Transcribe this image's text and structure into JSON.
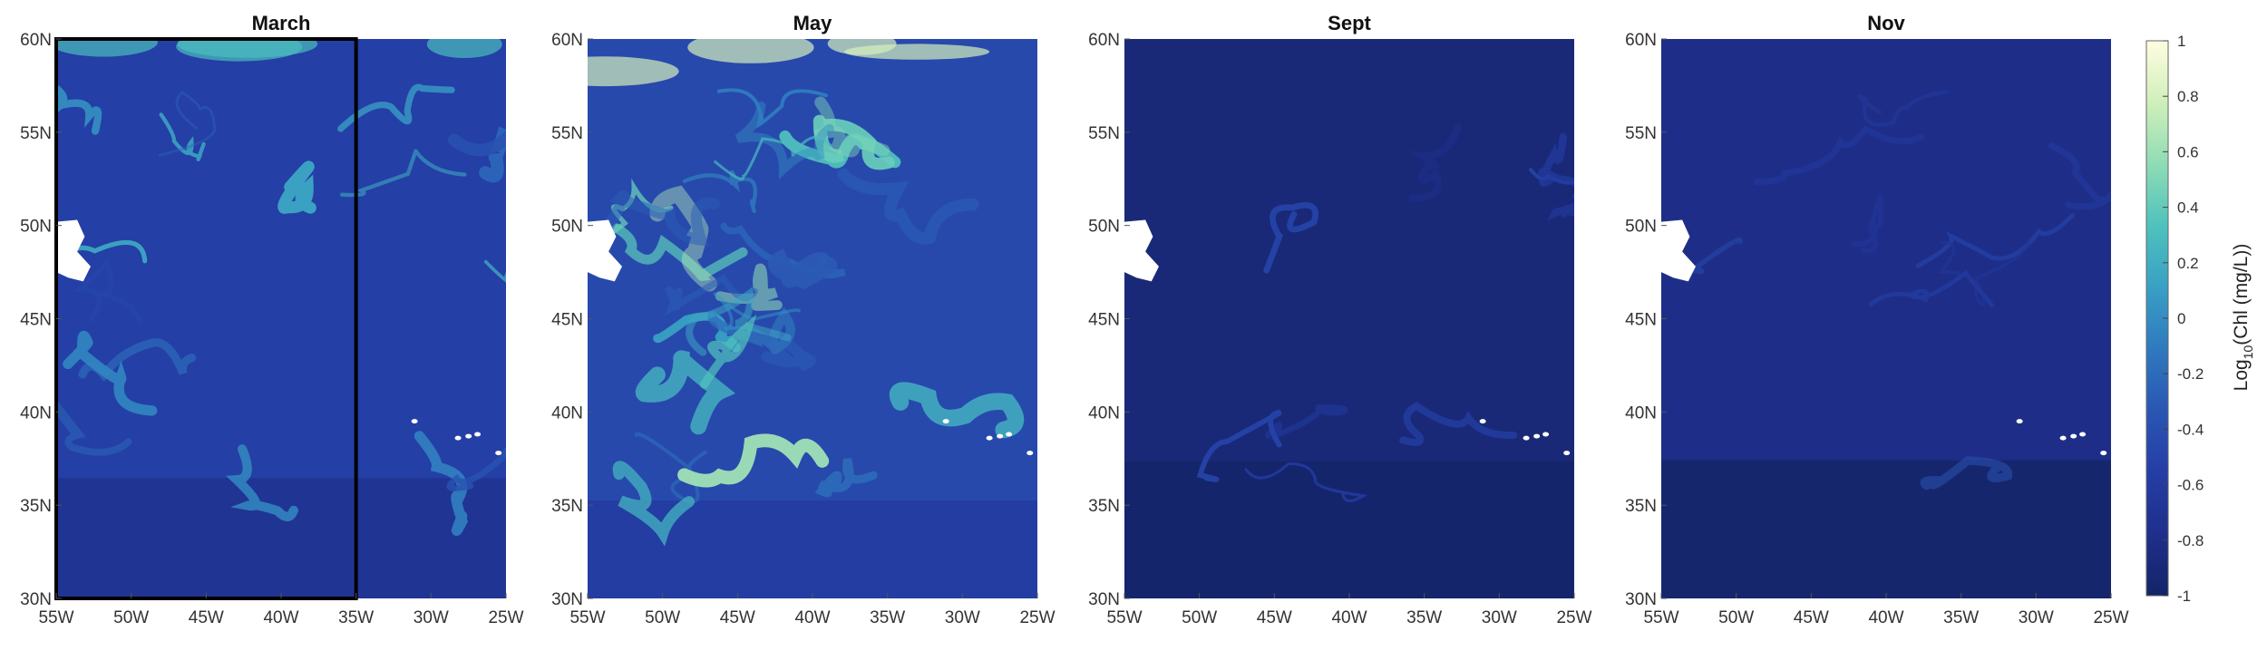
{
  "chart_data": {
    "type": "heatmap",
    "variable": "Chl",
    "colorbar": {
      "label_prefix": "Log",
      "label_sub": "10",
      "label_rest": "(Chl (mg/L))",
      "range": [
        -1,
        1
      ],
      "ticks": [
        "1",
        "0.8",
        "0.6",
        "0.4",
        "0.2",
        "0",
        "-0.2",
        "-0.4",
        "-0.6",
        "-0.8",
        "-1"
      ],
      "colors": [
        "#142468",
        "#1f2f8c",
        "#243ea6",
        "#2a56b3",
        "#2f79bf",
        "#39a0c4",
        "#4fc2bd",
        "#8fdcb5",
        "#d0efba",
        "#fffde0"
      ]
    },
    "x_ticks": [
      "55W",
      "50W",
      "45W",
      "40W",
      "35W",
      "30W",
      "25W"
    ],
    "y_ticks": [
      "60N",
      "55N",
      "50N",
      "45N",
      "40N",
      "35N",
      "30N"
    ],
    "xlim": [
      -55,
      -25
    ],
    "ylim": [
      30,
      60
    ],
    "panels": [
      {
        "title": "March",
        "mean_log_chl": -0.55,
        "bloom_level": 0.35,
        "box": {
          "lon": [
            -55,
            -35
          ],
          "lat": [
            30,
            60
          ]
        }
      },
      {
        "title": "May",
        "mean_log_chl": -0.45,
        "bloom_level": 0.75
      },
      {
        "title": "Sept",
        "mean_log_chl": -0.9,
        "bloom_level": 0.05
      },
      {
        "title": "Nov",
        "mean_log_chl": -0.8,
        "bloom_level": 0.03
      }
    ]
  },
  "colors": {
    "land": "#ffffff",
    "frame": "#000000"
  }
}
